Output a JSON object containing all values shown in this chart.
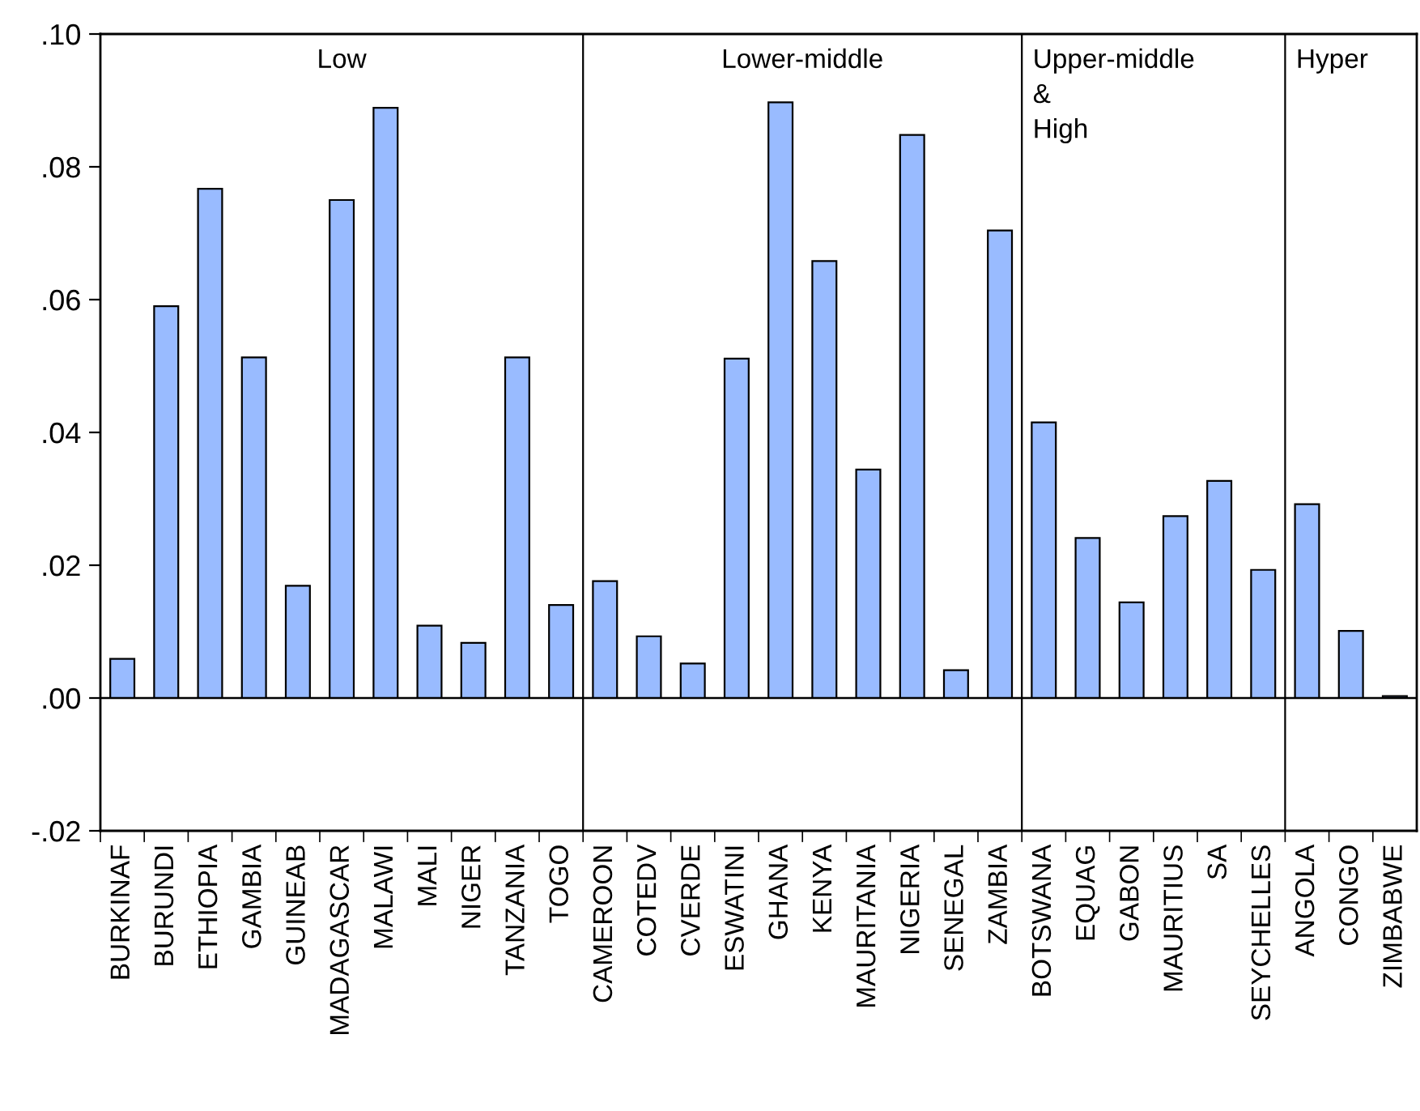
{
  "chart_data": {
    "type": "bar",
    "categories": [
      "BURKINAF",
      "BURUNDI",
      "ETHIOPIA",
      "GAMBIA",
      "GUINEAB",
      "MADAGASCAR",
      "MALAWI",
      "MALI",
      "NIGER",
      "TANZANIA",
      "TOGO",
      "CAMEROON",
      "COTEDV",
      "CVERDE",
      "ESWATINI",
      "GHANA",
      "KENYA",
      "MAURITANIA",
      "NIGERIA",
      "SENEGAL",
      "ZAMBIA",
      "BOTSWANA",
      "EQUAG",
      "GABON",
      "MAURITIUS",
      "SA",
      "SEYCHELLES",
      "ANGOLA",
      "CONGO",
      "ZIMBABWE"
    ],
    "values": [
      0.0059,
      0.059,
      0.0767,
      0.0513,
      0.0169,
      0.075,
      0.0889,
      0.0109,
      0.0083,
      0.0513,
      0.014,
      0.0176,
      0.0093,
      0.0052,
      0.0511,
      0.0897,
      0.0658,
      0.0344,
      0.0848,
      0.0042,
      0.0704,
      0.0415,
      0.0241,
      0.0144,
      0.0274,
      0.0327,
      0.0193,
      0.0292,
      0.0101,
      0.0003
    ],
    "color": "#99bbff",
    "ylim": [
      -0.02,
      0.1
    ],
    "yticks": [
      {
        "value": -0.02,
        "label": "-.02"
      },
      {
        "value": 0,
        "label": ".00"
      },
      {
        "value": 0.02,
        "label": ".02"
      },
      {
        "value": 0.04,
        "label": ".04"
      },
      {
        "value": 0.06,
        "label": ".06"
      },
      {
        "value": 0.08,
        "label": ".08"
      },
      {
        "value": 0.1,
        "label": ".10"
      }
    ],
    "ref_lines": [
      {
        "axis": "y",
        "value": 0
      }
    ],
    "annotations": [
      "Low",
      "Lower-middle",
      "Upper-middle\n&\nHigh",
      "Hyper"
    ],
    "grid": false,
    "legend": false
  }
}
